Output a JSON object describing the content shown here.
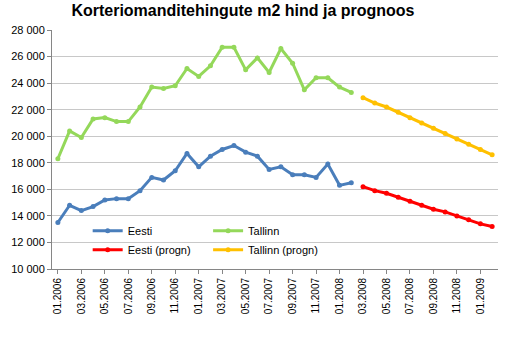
{
  "chart_data": {
    "type": "line",
    "title": "Korteriomanditehingute m2 hind ja prognoos",
    "categories": [
      "01.2006",
      null,
      "03.2006",
      null,
      "05.2006",
      null,
      "07.2006",
      null,
      "09.2006",
      null,
      "11.2006",
      null,
      "01.2007",
      null,
      "03.2007",
      null,
      "05.2007",
      null,
      "07.2007",
      null,
      "09.2007",
      null,
      "11.2007",
      null,
      "01.2008",
      null,
      "03.2008",
      null,
      "05.2008",
      null,
      "07.2008",
      null,
      "09.2008",
      null,
      "11.2008",
      null,
      "01.2009",
      null
    ],
    "series": [
      {
        "name": "Eesti",
        "color": "#4a7ebb",
        "values": [
          13500,
          14800,
          14400,
          14700,
          15200,
          15300,
          15300,
          15900,
          16900,
          16700,
          17400,
          18700,
          17700,
          18500,
          19000,
          19300,
          18800,
          18500,
          17500,
          17700,
          17100,
          17100,
          16900,
          17900,
          16300,
          16500,
          null,
          null,
          null,
          null,
          null,
          null,
          null,
          null,
          null,
          null,
          null,
          null
        ]
      },
      {
        "name": "Tallinn",
        "color": "#94d85a",
        "values": [
          18300,
          20400,
          19900,
          21300,
          21400,
          21100,
          21100,
          22200,
          23700,
          23600,
          23800,
          25100,
          24500,
          25300,
          26700,
          26700,
          25000,
          25900,
          24800,
          26600,
          25500,
          23500,
          24400,
          24400,
          23700,
          23300,
          null,
          null,
          null,
          null,
          null,
          null,
          null,
          null,
          null,
          null,
          null,
          null
        ]
      },
      {
        "name": "Eesti (progn)",
        "color": "#ff0000",
        "values": [
          null,
          null,
          null,
          null,
          null,
          null,
          null,
          null,
          null,
          null,
          null,
          null,
          null,
          null,
          null,
          null,
          null,
          null,
          null,
          null,
          null,
          null,
          null,
          null,
          null,
          null,
          16200,
          15900,
          15700,
          15400,
          15100,
          14800,
          14500,
          14300,
          14000,
          13700,
          13400,
          13200
        ]
      },
      {
        "name": "Tallinn (progn)",
        "color": "#ffc000",
        "values": [
          null,
          null,
          null,
          null,
          null,
          null,
          null,
          null,
          null,
          null,
          null,
          null,
          null,
          null,
          null,
          null,
          null,
          null,
          null,
          null,
          null,
          null,
          null,
          null,
          null,
          null,
          22900,
          22500,
          22200,
          21800,
          21400,
          21000,
          20600,
          20200,
          19800,
          19400,
          19000,
          18600
        ]
      }
    ],
    "ylim": [
      10000,
      28000
    ],
    "yticks": [
      {
        "value": 10000,
        "label": "10 000"
      },
      {
        "value": 12000,
        "label": "12 000"
      },
      {
        "value": 14000,
        "label": "14 000"
      },
      {
        "value": 16000,
        "label": "16 000"
      },
      {
        "value": 18000,
        "label": "18 000"
      },
      {
        "value": 20000,
        "label": "20 000"
      },
      {
        "value": 22000,
        "label": "22 000"
      },
      {
        "value": 24000,
        "label": "24 000"
      },
      {
        "value": 26000,
        "label": "26 000"
      },
      {
        "value": 28000,
        "label": "28 000"
      }
    ],
    "grid": true,
    "legend": "lower left",
    "marker": "circle",
    "line_style": "solid"
  }
}
